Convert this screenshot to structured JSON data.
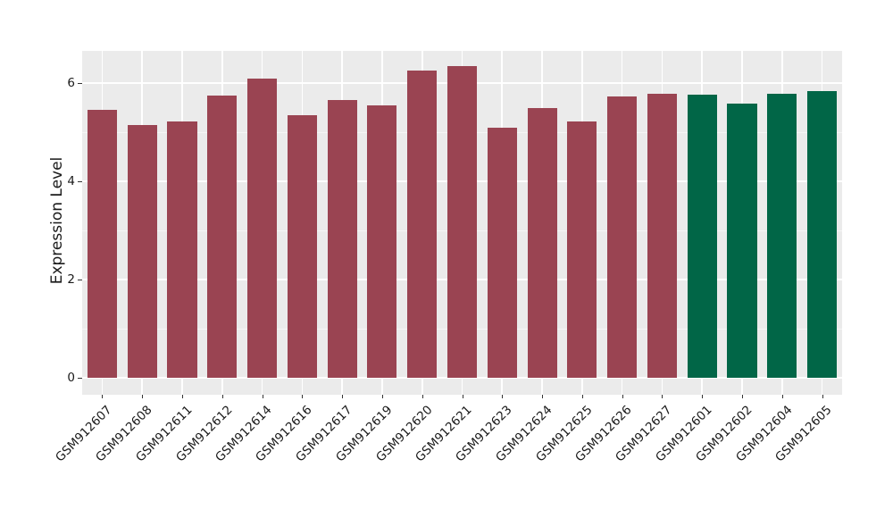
{
  "chart_data": {
    "type": "bar",
    "title": "",
    "xlabel": "",
    "ylabel": "Expression Level",
    "categories": [
      "GSM912607",
      "GSM912608",
      "GSM912611",
      "GSM912612",
      "GSM912614",
      "GSM912616",
      "GSM912617",
      "GSM912619",
      "GSM912620",
      "GSM912621",
      "GSM912623",
      "GSM912624",
      "GSM912625",
      "GSM912626",
      "GSM912627",
      "GSM912601",
      "GSM912602",
      "GSM912604",
      "GSM912605"
    ],
    "values": [
      5.45,
      5.15,
      5.22,
      5.75,
      6.1,
      5.34,
      5.66,
      5.54,
      6.25,
      6.35,
      5.1,
      5.5,
      5.22,
      5.72,
      5.79,
      5.77,
      5.58,
      5.78,
      5.83
    ],
    "bar_groups": [
      "group1",
      "group1",
      "group1",
      "group1",
      "group1",
      "group1",
      "group1",
      "group1",
      "group1",
      "group1",
      "group1",
      "group1",
      "group1",
      "group1",
      "group1",
      "group2",
      "group2",
      "group2",
      "group2"
    ],
    "group_colors": {
      "group1": "#9A4452",
      "group2": "#016647"
    },
    "yticks": [
      0,
      2,
      4,
      6
    ],
    "yminorticks": [
      1,
      3,
      5
    ],
    "ylim": [
      0,
      6.65
    ],
    "grid": true,
    "legend": null,
    "panel_bg": "#EBEBEB",
    "gridline_color": "#FFFFFF",
    "tick_mark_color": "#333333",
    "text_color": "#1a1a1a"
  }
}
